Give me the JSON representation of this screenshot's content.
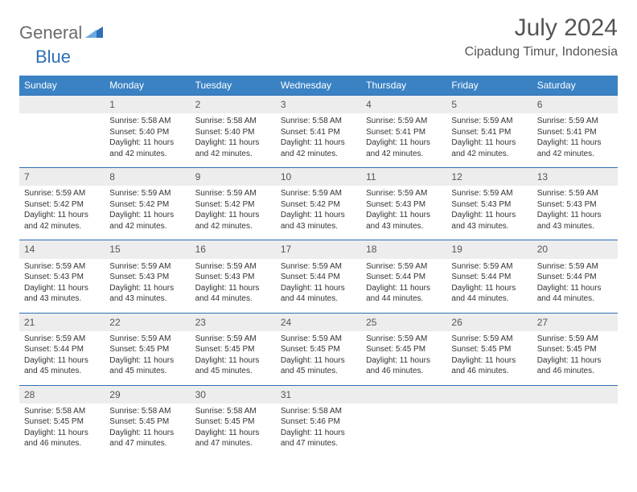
{
  "logo": {
    "word1": "General",
    "word2": "Blue"
  },
  "title": "July 2024",
  "location": "Cipadung Timur, Indonesia",
  "colors": {
    "header_bg": "#3a82c4",
    "header_text": "#ffffff",
    "daynum_bg": "#ededed",
    "cell_border": "#2d6fb6",
    "title_color": "#555555",
    "body_text": "#333333",
    "logo_gray": "#6b6b6b",
    "logo_blue": "#2d6fb6"
  },
  "typography": {
    "title_fontsize": 30,
    "location_fontsize": 16,
    "header_fontsize": 12,
    "daynum_fontsize": 12,
    "body_fontsize": 10
  },
  "dayNames": [
    "Sunday",
    "Monday",
    "Tuesday",
    "Wednesday",
    "Thursday",
    "Friday",
    "Saturday"
  ],
  "weeks": [
    [
      null,
      {
        "d": "1",
        "sr": "5:58 AM",
        "ss": "5:40 PM",
        "dl": "11 hours and 42 minutes."
      },
      {
        "d": "2",
        "sr": "5:58 AM",
        "ss": "5:40 PM",
        "dl": "11 hours and 42 minutes."
      },
      {
        "d": "3",
        "sr": "5:58 AM",
        "ss": "5:41 PM",
        "dl": "11 hours and 42 minutes."
      },
      {
        "d": "4",
        "sr": "5:59 AM",
        "ss": "5:41 PM",
        "dl": "11 hours and 42 minutes."
      },
      {
        "d": "5",
        "sr": "5:59 AM",
        "ss": "5:41 PM",
        "dl": "11 hours and 42 minutes."
      },
      {
        "d": "6",
        "sr": "5:59 AM",
        "ss": "5:41 PM",
        "dl": "11 hours and 42 minutes."
      }
    ],
    [
      {
        "d": "7",
        "sr": "5:59 AM",
        "ss": "5:42 PM",
        "dl": "11 hours and 42 minutes."
      },
      {
        "d": "8",
        "sr": "5:59 AM",
        "ss": "5:42 PM",
        "dl": "11 hours and 42 minutes."
      },
      {
        "d": "9",
        "sr": "5:59 AM",
        "ss": "5:42 PM",
        "dl": "11 hours and 42 minutes."
      },
      {
        "d": "10",
        "sr": "5:59 AM",
        "ss": "5:42 PM",
        "dl": "11 hours and 43 minutes."
      },
      {
        "d": "11",
        "sr": "5:59 AM",
        "ss": "5:43 PM",
        "dl": "11 hours and 43 minutes."
      },
      {
        "d": "12",
        "sr": "5:59 AM",
        "ss": "5:43 PM",
        "dl": "11 hours and 43 minutes."
      },
      {
        "d": "13",
        "sr": "5:59 AM",
        "ss": "5:43 PM",
        "dl": "11 hours and 43 minutes."
      }
    ],
    [
      {
        "d": "14",
        "sr": "5:59 AM",
        "ss": "5:43 PM",
        "dl": "11 hours and 43 minutes."
      },
      {
        "d": "15",
        "sr": "5:59 AM",
        "ss": "5:43 PM",
        "dl": "11 hours and 43 minutes."
      },
      {
        "d": "16",
        "sr": "5:59 AM",
        "ss": "5:43 PM",
        "dl": "11 hours and 44 minutes."
      },
      {
        "d": "17",
        "sr": "5:59 AM",
        "ss": "5:44 PM",
        "dl": "11 hours and 44 minutes."
      },
      {
        "d": "18",
        "sr": "5:59 AM",
        "ss": "5:44 PM",
        "dl": "11 hours and 44 minutes."
      },
      {
        "d": "19",
        "sr": "5:59 AM",
        "ss": "5:44 PM",
        "dl": "11 hours and 44 minutes."
      },
      {
        "d": "20",
        "sr": "5:59 AM",
        "ss": "5:44 PM",
        "dl": "11 hours and 44 minutes."
      }
    ],
    [
      {
        "d": "21",
        "sr": "5:59 AM",
        "ss": "5:44 PM",
        "dl": "11 hours and 45 minutes."
      },
      {
        "d": "22",
        "sr": "5:59 AM",
        "ss": "5:45 PM",
        "dl": "11 hours and 45 minutes."
      },
      {
        "d": "23",
        "sr": "5:59 AM",
        "ss": "5:45 PM",
        "dl": "11 hours and 45 minutes."
      },
      {
        "d": "24",
        "sr": "5:59 AM",
        "ss": "5:45 PM",
        "dl": "11 hours and 45 minutes."
      },
      {
        "d": "25",
        "sr": "5:59 AM",
        "ss": "5:45 PM",
        "dl": "11 hours and 46 minutes."
      },
      {
        "d": "26",
        "sr": "5:59 AM",
        "ss": "5:45 PM",
        "dl": "11 hours and 46 minutes."
      },
      {
        "d": "27",
        "sr": "5:59 AM",
        "ss": "5:45 PM",
        "dl": "11 hours and 46 minutes."
      }
    ],
    [
      {
        "d": "28",
        "sr": "5:58 AM",
        "ss": "5:45 PM",
        "dl": "11 hours and 46 minutes."
      },
      {
        "d": "29",
        "sr": "5:58 AM",
        "ss": "5:45 PM",
        "dl": "11 hours and 47 minutes."
      },
      {
        "d": "30",
        "sr": "5:58 AM",
        "ss": "5:45 PM",
        "dl": "11 hours and 47 minutes."
      },
      {
        "d": "31",
        "sr": "5:58 AM",
        "ss": "5:46 PM",
        "dl": "11 hours and 47 minutes."
      },
      null,
      null,
      null
    ]
  ],
  "labels": {
    "sunrise": "Sunrise:",
    "sunset": "Sunset:",
    "daylight": "Daylight:"
  }
}
